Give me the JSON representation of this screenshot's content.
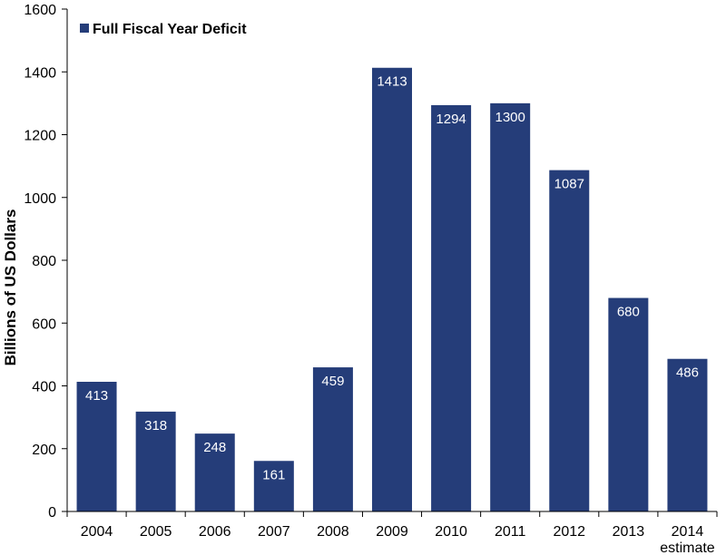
{
  "chart_data": {
    "type": "bar",
    "categories": [
      "2004",
      "2005",
      "2006",
      "2007",
      "2008",
      "2009",
      "2010",
      "2011",
      "2012",
      "2013",
      "2014"
    ],
    "category_sublabels": [
      "",
      "",
      "",
      "",
      "",
      "",
      "",
      "",
      "",
      "",
      "estimate"
    ],
    "series": [
      {
        "name": "Full Fiscal Year Deficit",
        "values": [
          413,
          318,
          248,
          161,
          459,
          1413,
          1294,
          1300,
          1087,
          680,
          486
        ],
        "color": "#253D79"
      }
    ],
    "data_labels": [
      "413",
      "318",
      "248",
      "161",
      "459",
      "1413",
      "1294",
      "1300",
      "1087",
      "680",
      "486"
    ],
    "title": "",
    "xlabel": "",
    "ylabel": "Billions of US Dollars",
    "ylim": [
      0,
      1600
    ],
    "yticks": [
      "0",
      "200",
      "400",
      "600",
      "800",
      "1000",
      "1200",
      "1400",
      "1600"
    ],
    "legend_position": "top-left",
    "grid": false,
    "label_color": "#FFFFFF"
  }
}
